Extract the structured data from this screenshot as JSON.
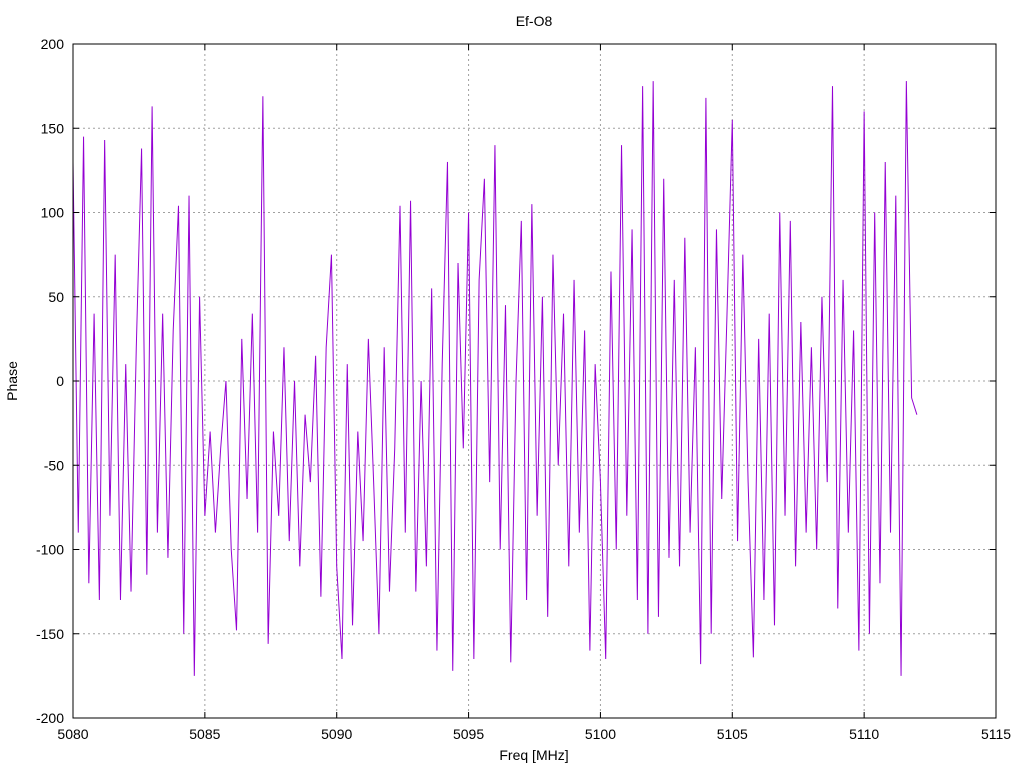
{
  "chart_data": {
    "type": "line",
    "title": "Ef-O8",
    "xlabel": "Freq [MHz]",
    "ylabel": "Phase",
    "xlim": [
      5080,
      5115
    ],
    "ylim": [
      -200,
      200
    ],
    "xticks": [
      5080,
      5085,
      5090,
      5095,
      5100,
      5105,
      5110,
      5115
    ],
    "yticks": [
      -200,
      -150,
      -100,
      -50,
      0,
      50,
      100,
      150,
      200
    ],
    "grid": true,
    "legend": "none",
    "series": [
      {
        "name": "Ef-O8",
        "color": "#9400d3",
        "x_start": 5080,
        "x_step": 0.2,
        "values": [
          130,
          -90,
          145,
          -120,
          40,
          -130,
          143,
          -80,
          75,
          -130,
          10,
          -125,
          20,
          138,
          -115,
          163,
          -90,
          40,
          -105,
          30,
          104,
          -150,
          110,
          -175,
          50,
          -80,
          -30,
          -90,
          -40,
          0,
          -100,
          -148,
          25,
          -70,
          40,
          -90,
          169,
          -156,
          -30,
          -80,
          20,
          -95,
          0,
          -110,
          -20,
          -60,
          15,
          -128,
          20,
          75,
          -110,
          -165,
          10,
          -145,
          -30,
          -95,
          25,
          -60,
          -150,
          20,
          -125,
          -40,
          104,
          -90,
          107,
          -125,
          0,
          -110,
          55,
          -160,
          10,
          130,
          -172,
          70,
          -40,
          100,
          -165,
          60,
          120,
          -60,
          140,
          -100,
          45,
          -167,
          0,
          95,
          -130,
          105,
          -80,
          50,
          -140,
          75,
          -50,
          40,
          -110,
          60,
          -90,
          30,
          -160,
          10,
          -60,
          -165,
          65,
          -100,
          140,
          -80,
          90,
          -130,
          175,
          -150,
          178,
          -140,
          120,
          -105,
          60,
          -110,
          85,
          -90,
          20,
          -168,
          168,
          -150,
          90,
          -70,
          40,
          155,
          -95,
          75,
          -60,
          -164,
          25,
          -130,
          40,
          -145,
          100,
          -80,
          95,
          -110,
          35,
          -90,
          20,
          -100,
          50,
          -60,
          175,
          -135,
          60,
          -90,
          30,
          -160,
          160,
          -150,
          100,
          -120,
          130,
          -90,
          110,
          -175,
          178,
          -10,
          -20
        ]
      }
    ]
  }
}
